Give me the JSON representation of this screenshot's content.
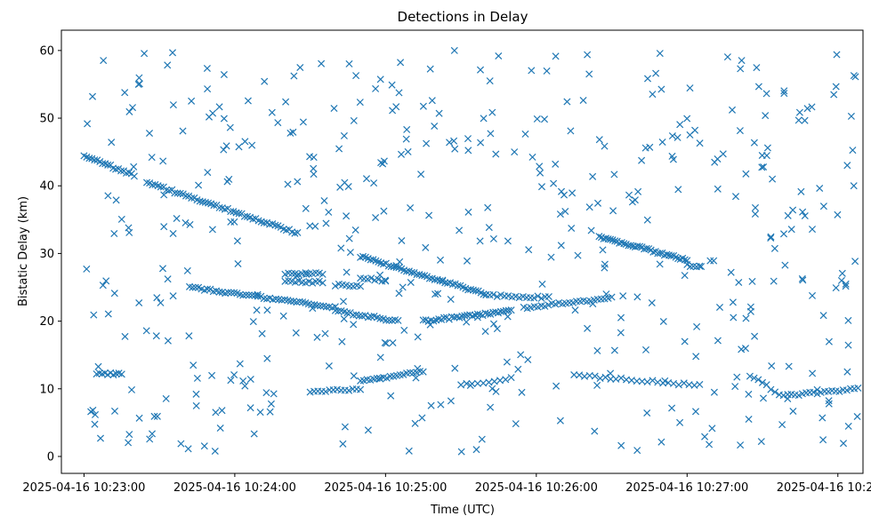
{
  "chart_data": {
    "type": "scatter",
    "title": "Detections in Delay",
    "xlabel": "Time (UTC)",
    "ylabel": "Bistatic Delay (km)",
    "marker": "x",
    "color": "#1f77b4",
    "grid": false,
    "legend": "none",
    "xlim": [
      "2025-04-16 10:22:51",
      "2025-04-16 10:28:10"
    ],
    "ylim": [
      -2.5,
      63
    ],
    "x_ticks": [
      "2025-04-16 10:23:00",
      "2025-04-16 10:24:00",
      "2025-04-16 10:25:00",
      "2025-04-16 10:26:00",
      "2025-04-16 10:27:00",
      "2025-04-16 10:28:00"
    ],
    "y_ticks": [
      0,
      10,
      20,
      30,
      40,
      50,
      60
    ],
    "tracks": [
      {
        "start": "2025-04-16 10:23:00",
        "end": "2025-04-16 10:23:20",
        "delay_start": 44.5,
        "delay_end": 41.5,
        "points": 20
      },
      {
        "start": "2025-04-16 10:23:25",
        "end": "2025-04-16 10:24:25",
        "delay_start": 40.5,
        "delay_end": 33.0,
        "points": 55
      },
      {
        "start": "2025-04-16 10:23:42",
        "end": "2025-04-16 10:24:40",
        "delay_start": 25.0,
        "delay_end": 22.0,
        "points": 50
      },
      {
        "start": "2025-04-16 10:24:20",
        "end": "2025-04-16 10:24:35",
        "delay_start": 27.0,
        "delay_end": 27.0,
        "points": 12
      },
      {
        "start": "2025-04-16 10:24:20",
        "end": "2025-04-16 10:24:35",
        "delay_start": 25.8,
        "delay_end": 25.8,
        "points": 12
      },
      {
        "start": "2025-04-16 10:24:40",
        "end": "2025-04-16 10:24:50",
        "delay_start": 25.3,
        "delay_end": 25.3,
        "points": 8
      },
      {
        "start": "2025-04-16 10:24:50",
        "end": "2025-04-16 10:25:00",
        "delay_start": 26.5,
        "delay_end": 26.0,
        "points": 8
      },
      {
        "start": "2025-04-16 10:24:40",
        "end": "2025-04-16 10:25:05",
        "delay_start": 21.5,
        "delay_end": 20.0,
        "points": 22
      },
      {
        "start": "2025-04-16 10:24:50",
        "end": "2025-04-16 10:25:40",
        "delay_start": 29.5,
        "delay_end": 24.0,
        "points": 50
      },
      {
        "start": "2025-04-16 10:25:15",
        "end": "2025-04-16 10:25:50",
        "delay_start": 20.0,
        "delay_end": 21.5,
        "points": 35
      },
      {
        "start": "2025-04-16 10:25:40",
        "end": "2025-04-16 10:26:05",
        "delay_start": 23.8,
        "delay_end": 23.5,
        "points": 18
      },
      {
        "start": "2025-04-16 10:25:55",
        "end": "2025-04-16 10:26:30",
        "delay_start": 22.0,
        "delay_end": 23.5,
        "points": 26
      },
      {
        "start": "2025-04-16 10:26:25",
        "end": "2025-04-16 10:27:00",
        "delay_start": 32.5,
        "delay_end": 29.0,
        "points": 40
      },
      {
        "start": "2025-04-16 10:27:00",
        "end": "2025-04-16 10:27:05",
        "delay_start": 28.2,
        "delay_end": 28.2,
        "points": 5
      },
      {
        "start": "2025-04-16 10:23:05",
        "end": "2025-04-16 10:23:15",
        "delay_start": 12.2,
        "delay_end": 12.2,
        "points": 10
      },
      {
        "start": "2025-04-16 10:24:30",
        "end": "2025-04-16 10:24:50",
        "delay_start": 9.5,
        "delay_end": 10.0,
        "points": 14
      },
      {
        "start": "2025-04-16 10:24:50",
        "end": "2025-04-16 10:25:15",
        "delay_start": 11.2,
        "delay_end": 12.5,
        "points": 20
      },
      {
        "start": "2025-04-16 10:25:30",
        "end": "2025-04-16 10:25:50",
        "delay_start": 10.5,
        "delay_end": 11.5,
        "points": 10
      },
      {
        "start": "2025-04-16 10:26:15",
        "end": "2025-04-16 10:27:05",
        "delay_start": 12.0,
        "delay_end": 10.5,
        "points": 25
      },
      {
        "start": "2025-04-16 10:27:25",
        "end": "2025-04-16 10:27:40",
        "delay_start": 12.0,
        "delay_end": 8.5,
        "points": 10
      },
      {
        "start": "2025-04-16 10:27:40",
        "end": "2025-04-16 10:28:08",
        "delay_start": 9.0,
        "delay_end": 10.0,
        "points": 20
      }
    ],
    "scattered": {
      "start": "2025-04-16 10:23:00",
      "end": "2025-04-16 10:28:08",
      "delay_min": 0.5,
      "delay_max": 60.0,
      "points": 480
    }
  }
}
